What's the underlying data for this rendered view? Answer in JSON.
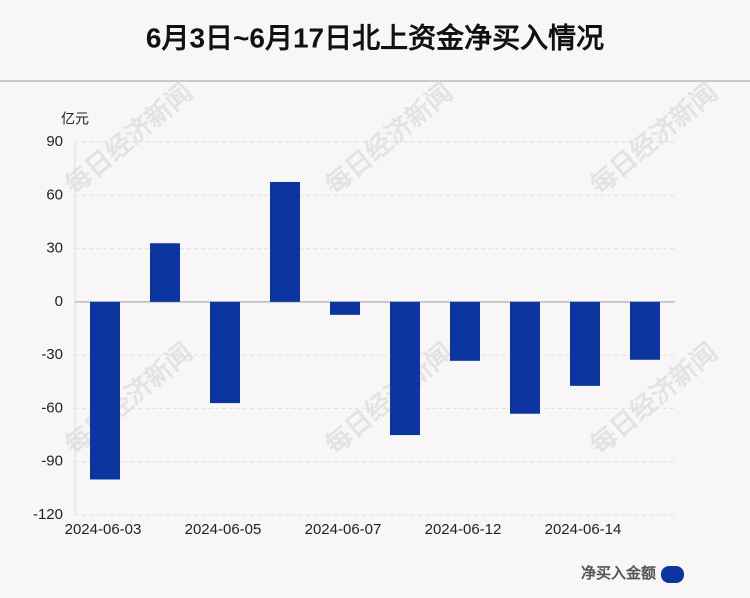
{
  "chart_data": {
    "type": "bar",
    "title": "6月3日~6月17日北上资金净买入情况",
    "y_unit": "亿元",
    "watermark": "每日经济新闻",
    "categories": [
      "2024-06-03",
      null,
      "2024-06-05",
      null,
      "2024-06-07",
      null,
      "2024-06-12",
      null,
      "2024-06-14",
      null
    ],
    "series": [
      {
        "name": "净买入金额",
        "color": "#0d35a0",
        "values": [
          -100,
          33,
          -57,
          67.5,
          -7.3,
          -75,
          -33.2,
          -63,
          -47.3,
          -32.6
        ]
      }
    ],
    "ylim": [
      -120,
      90
    ],
    "yticks": [
      -120,
      -90,
      -60,
      -30,
      0,
      30,
      60,
      90
    ],
    "grid": true,
    "legend": "bottom-right"
  }
}
